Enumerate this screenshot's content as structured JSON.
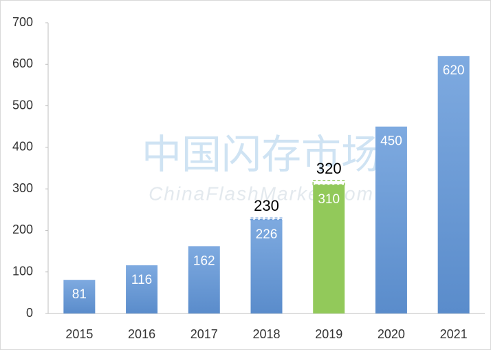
{
  "chart_data": {
    "type": "bar",
    "categories": [
      "2015",
      "2016",
      "2017",
      "2018",
      "2019",
      "2020",
      "2021"
    ],
    "values": [
      81,
      116,
      162,
      226,
      310,
      450,
      620
    ],
    "colors": [
      "#6b9bd6",
      "#6b9bd6",
      "#6b9bd6",
      "#6b9bd6",
      "#92c95a",
      "#6b9bd6",
      "#6b9bd6"
    ],
    "targets": [
      null,
      null,
      null,
      230,
      320,
      null,
      null
    ],
    "ylim": [
      0,
      700
    ],
    "yticks": [
      0,
      100,
      200,
      300,
      400,
      500,
      600,
      700
    ],
    "watermark": {
      "title": "中国闪存市场",
      "subtitle": "ChinaFlashMarket.com"
    }
  }
}
